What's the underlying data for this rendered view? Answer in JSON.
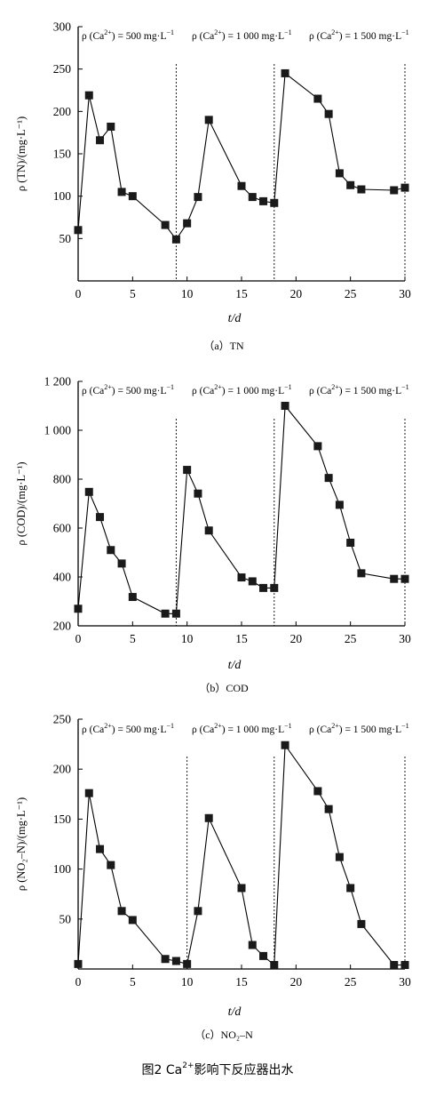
{
  "chart_data": [
    {
      "type": "line",
      "panel_caption": "（a）TN",
      "ylabel": "ρ (TN)/(mg·L⁻¹)",
      "xlabel": "t/d",
      "ylim": [
        0,
        300
      ],
      "yticks": [
        50,
        100,
        150,
        200,
        250,
        300
      ],
      "ytick_labels": [
        "50",
        "100",
        "150",
        "200",
        "250",
        "300"
      ],
      "xlim": [
        0,
        30
      ],
      "xticks": [
        0,
        5,
        10,
        15,
        20,
        25,
        30
      ],
      "xtick_labels": [
        "0",
        "5",
        "10",
        "15",
        "20",
        "25",
        "30"
      ],
      "grid": false,
      "marker": "square",
      "dividers": [
        9,
        18,
        30
      ],
      "x": [
        0,
        1,
        2,
        3,
        4,
        5,
        8,
        9,
        10,
        11,
        12,
        15,
        16,
        17,
        18,
        19,
        22,
        23,
        24,
        25,
        26,
        29,
        30
      ],
      "values": [
        60,
        219,
        166,
        182,
        105,
        100,
        66,
        49,
        68,
        99,
        190,
        112,
        99,
        94,
        92,
        245,
        215,
        197,
        127,
        113,
        108,
        107,
        110
      ]
    },
    {
      "type": "line",
      "panel_caption": "（b）COD",
      "ylabel": "ρ (COD)/(mg·L⁻¹)",
      "xlabel": "t/d",
      "ylim": [
        200,
        1200
      ],
      "yticks": [
        200,
        400,
        600,
        800,
        1000,
        1200
      ],
      "ytick_labels": [
        "200",
        "400",
        "600",
        "800",
        "1 000",
        "1 200"
      ],
      "xlim": [
        0,
        30
      ],
      "xticks": [
        0,
        5,
        10,
        15,
        20,
        25,
        30
      ],
      "xtick_labels": [
        "0",
        "5",
        "10",
        "15",
        "20",
        "25",
        "30"
      ],
      "grid": false,
      "marker": "square",
      "dividers": [
        9,
        18,
        30
      ],
      "x": [
        0,
        1,
        2,
        3,
        4,
        5,
        8,
        9,
        10,
        11,
        12,
        15,
        16,
        17,
        18,
        19,
        22,
        23,
        24,
        25,
        26,
        29,
        30
      ],
      "values": [
        270,
        748,
        645,
        510,
        455,
        318,
        250,
        250,
        838,
        741,
        590,
        398,
        382,
        355,
        355,
        1100,
        935,
        805,
        695,
        540,
        415,
        392,
        392
      ]
    },
    {
      "type": "line",
      "panel_caption": "（c）NO₂–N",
      "ylabel": "ρ (NO₂–N)/(mg·L⁻¹)",
      "xlabel": "t/d",
      "ylim": [
        0,
        250
      ],
      "yticks": [
        50,
        100,
        150,
        200,
        250
      ],
      "ytick_labels": [
        "50",
        "100",
        "150",
        "200",
        "250"
      ],
      "xlim": [
        0,
        30
      ],
      "xticks": [
        0,
        5,
        10,
        15,
        20,
        25,
        30
      ],
      "xtick_labels": [
        "0",
        "5",
        "10",
        "15",
        "20",
        "25",
        "30"
      ],
      "grid": false,
      "marker": "square",
      "dividers": [
        10,
        18,
        30
      ],
      "x": [
        0,
        1,
        2,
        3,
        4,
        5,
        8,
        9,
        10,
        11,
        12,
        15,
        16,
        17,
        18,
        19,
        22,
        23,
        24,
        25,
        26,
        29,
        30
      ],
      "values": [
        5,
        176,
        120,
        104,
        58,
        49,
        10,
        8,
        5,
        58,
        151,
        81,
        24,
        13,
        4,
        224,
        178,
        160,
        112,
        81,
        45,
        4,
        4
      ]
    }
  ],
  "annotations": [
    {
      "main": "ρ (Ca",
      "sup": "2+",
      "tail": ") = 500 mg·L",
      "sup2": "−1"
    },
    {
      "main": "ρ (Ca",
      "sup": "2+",
      "tail": ") = 1 000 mg·L",
      "sup2": "−1"
    },
    {
      "main": "ρ (Ca",
      "sup": "2+",
      "tail": ") = 1 500 mg·L",
      "sup2": "−1"
    }
  ],
  "figure_caption": {
    "prefix": "图2  Ca",
    "sup": "2+",
    "suffix": "影响下反应器出水"
  }
}
